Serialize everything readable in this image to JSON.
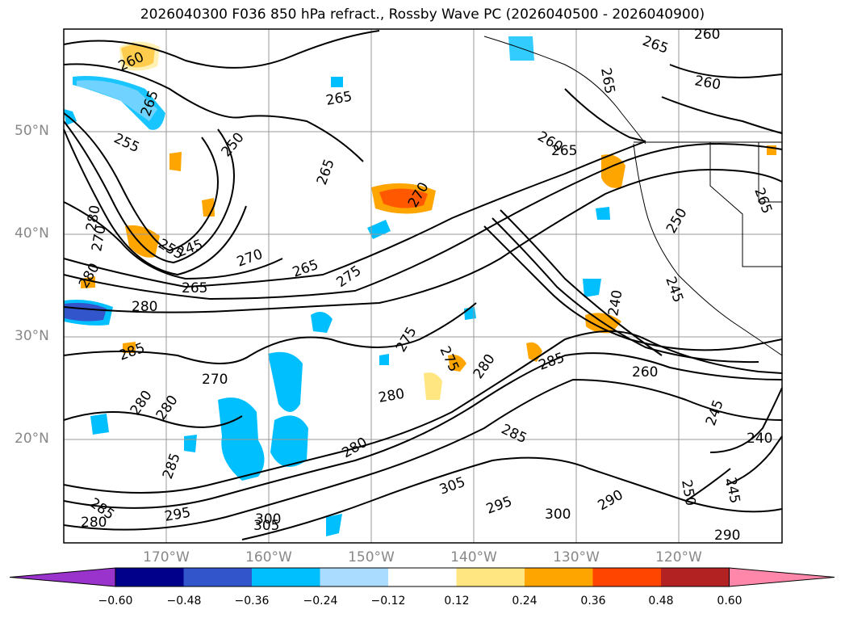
{
  "title": "2026040300 F036 850 hPa refract., Rossby Wave PC (2026040500 - 2026040900)",
  "axes": {
    "lat_labels": [
      "50°N",
      "40°N",
      "30°N",
      "20°N"
    ],
    "lon_labels": [
      "170°W",
      "160°W",
      "150°W",
      "140°W",
      "130°W",
      "120°W"
    ]
  },
  "colorbar": {
    "ticks": [
      "−0.60",
      "−0.48",
      "−0.36",
      "−0.24",
      "−0.12",
      "0.12",
      "0.24",
      "0.36",
      "0.48",
      "0.60"
    ],
    "colors": [
      "#9933cc",
      "#00008b",
      "#3355cc",
      "#00bfff",
      "#aadcff",
      "#ffffff",
      "#ffe680",
      "#ffa500",
      "#ff4500",
      "#b22222",
      "#ff88aa"
    ]
  },
  "contour_labels": [
    {
      "text": "260"
    },
    {
      "text": "265"
    },
    {
      "text": "260"
    },
    {
      "text": "265"
    },
    {
      "text": "260"
    },
    {
      "text": "265"
    },
    {
      "text": "255"
    },
    {
      "text": "250"
    },
    {
      "text": "265"
    },
    {
      "text": "270"
    },
    {
      "text": "270"
    },
    {
      "text": "265"
    },
    {
      "text": "275"
    },
    {
      "text": "280"
    },
    {
      "text": "265"
    },
    {
      "text": "275"
    },
    {
      "text": "270"
    },
    {
      "text": "280"
    },
    {
      "text": "275"
    },
    {
      "text": "280"
    },
    {
      "text": "285"
    },
    {
      "text": "285"
    },
    {
      "text": "260"
    },
    {
      "text": "240"
    },
    {
      "text": "280"
    },
    {
      "text": "285"
    },
    {
      "text": "300"
    },
    {
      "text": "305"
    },
    {
      "text": "295"
    },
    {
      "text": "300"
    },
    {
      "text": "290"
    },
    {
      "text": "305"
    },
    {
      "text": "280"
    },
    {
      "text": "295"
    },
    {
      "text": "285"
    },
    {
      "text": "250"
    },
    {
      "text": "245"
    },
    {
      "text": "290"
    },
    {
      "text": "245"
    },
    {
      "text": "240"
    },
    {
      "text": "265"
    },
    {
      "text": "265"
    },
    {
      "text": "245"
    },
    {
      "text": "280"
    },
    {
      "text": "270"
    },
    {
      "text": "280"
    },
    {
      "text": "255"
    },
    {
      "text": "260"
    },
    {
      "text": "265"
    },
    {
      "text": "245"
    },
    {
      "text": "250"
    },
    {
      "text": "280"
    },
    {
      "text": "285"
    },
    {
      "text": "280"
    }
  ]
}
